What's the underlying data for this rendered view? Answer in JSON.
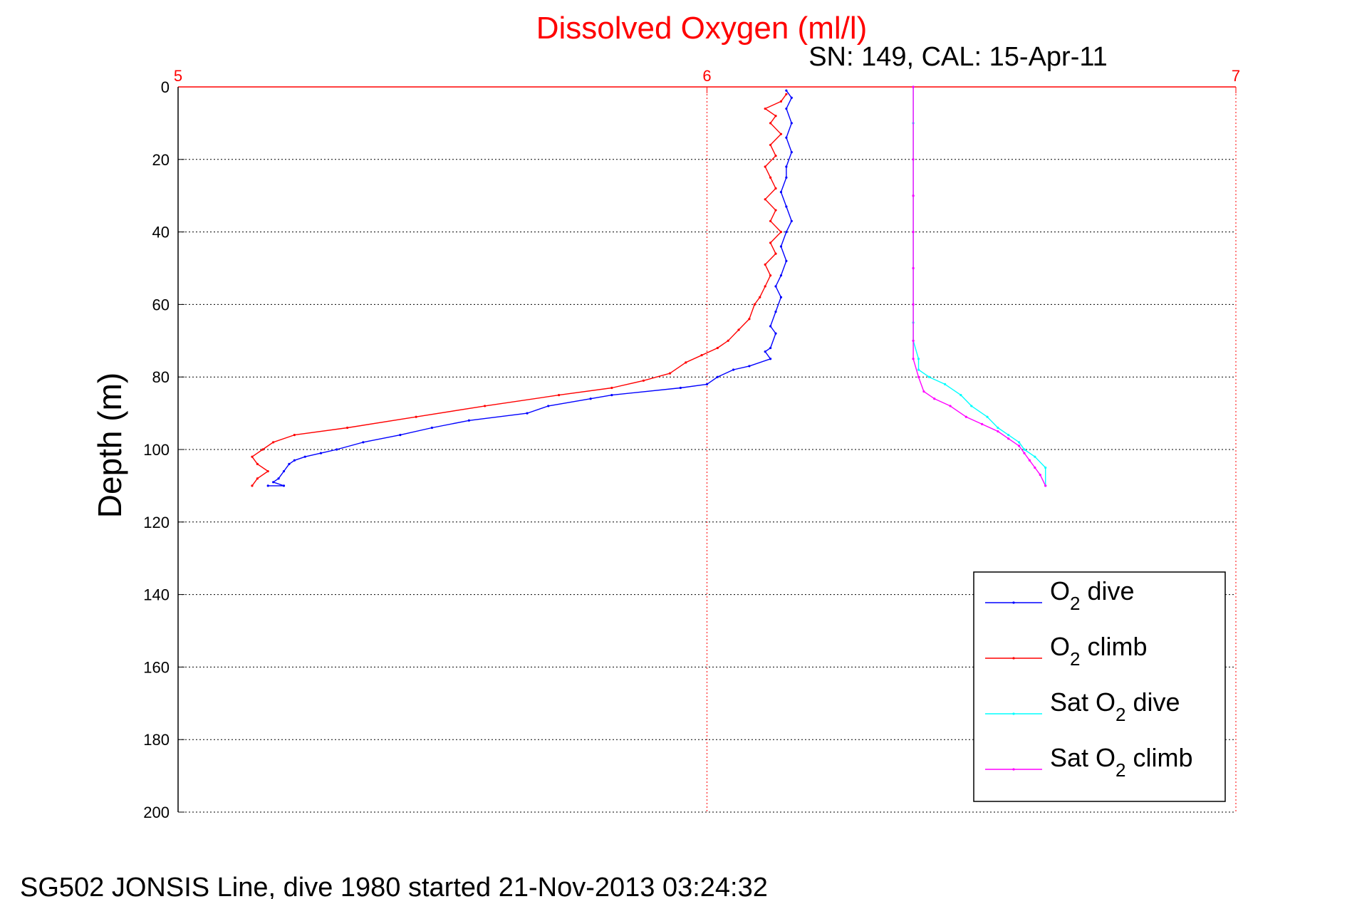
{
  "chart_data": {
    "type": "line",
    "title": "Dissolved Oxygen (ml/l)",
    "subtitle": "SN: 149, CAL: 15-Apr-11",
    "footer": "SG502 JONSIS Line, dive 1980 started 21-Nov-2013 03:24:32",
    "ylabel": "Depth (m)",
    "xlabel": "",
    "xlim": [
      5,
      7
    ],
    "ylim": [
      0,
      200
    ],
    "y_reversed": true,
    "x_axis_position": "top",
    "xticks": [
      5,
      6,
      7
    ],
    "yticks": [
      0,
      20,
      40,
      60,
      80,
      100,
      120,
      140,
      160,
      180,
      200
    ],
    "grid": true,
    "legend_position": "bottom-right",
    "colors": {
      "o2_dive": "#0000ff",
      "o2_climb": "#ff0000",
      "sat_dive": "#00ffff",
      "sat_climb": "#ff00ff",
      "x_axis": "#ff0000",
      "grid": "#000000"
    },
    "series": [
      {
        "key": "o2_dive",
        "legend": {
          "pre": "O",
          "sub": "2",
          "post": " dive"
        },
        "x": [
          6.15,
          6.16,
          6.15,
          6.16,
          6.15,
          6.16,
          6.15,
          6.15,
          6.14,
          6.15,
          6.16,
          6.15,
          6.14,
          6.15,
          6.14,
          6.13,
          6.14,
          6.13,
          6.12,
          6.13,
          6.12,
          6.11,
          6.12,
          6.08,
          6.05,
          6.02,
          6.0,
          5.95,
          5.82,
          5.78,
          5.7,
          5.66,
          5.55,
          5.48,
          5.42,
          5.35,
          5.3,
          5.27,
          5.24,
          5.22,
          5.21,
          5.2,
          5.19,
          5.18,
          5.2,
          5.17
        ],
        "y": [
          1,
          3,
          6,
          10,
          14,
          18,
          22,
          25,
          29,
          33,
          37,
          40,
          44,
          48,
          52,
          55,
          58,
          62,
          66,
          68,
          72,
          73,
          75,
          77,
          78,
          80,
          82,
          83,
          85,
          86,
          88,
          90,
          92,
          94,
          96,
          98,
          100,
          101,
          102,
          103,
          104,
          106,
          108,
          109,
          110,
          110
        ]
      },
      {
        "key": "o2_climb",
        "legend": {
          "pre": "O",
          "sub": "2",
          "post": " climb"
        },
        "x": [
          5.14,
          5.15,
          5.17,
          5.15,
          5.14,
          5.16,
          5.18,
          5.22,
          5.32,
          5.45,
          5.58,
          5.72,
          5.82,
          5.88,
          5.93,
          5.96,
          5.99,
          6.02,
          6.04,
          6.06,
          6.08,
          6.09,
          6.1,
          6.11,
          6.12,
          6.11,
          6.13,
          6.12,
          6.14,
          6.12,
          6.13,
          6.11,
          6.13,
          6.12,
          6.11,
          6.13,
          6.12,
          6.14,
          6.12,
          6.13,
          6.11,
          6.14,
          6.15
        ],
        "y": [
          110,
          108,
          106,
          104,
          102,
          100,
          98,
          96,
          94,
          91,
          88,
          85,
          83,
          81,
          79,
          76,
          74,
          72,
          70,
          67,
          64,
          60,
          58,
          55,
          52,
          49,
          46,
          43,
          40,
          37,
          34,
          31,
          28,
          25,
          22,
          19,
          16,
          13,
          10,
          8,
          6,
          4,
          2
        ]
      },
      {
        "key": "sat_dive",
        "legend": {
          "pre": "Sat O",
          "sub": "2",
          "post": " dive"
        },
        "x": [
          6.39,
          6.39,
          6.39,
          6.39,
          6.39,
          6.39,
          6.39,
          6.39,
          6.39,
          6.4,
          6.4,
          6.42,
          6.45,
          6.48,
          6.5,
          6.53,
          6.55,
          6.57,
          6.59,
          6.6,
          6.62,
          6.64,
          6.64
        ],
        "y": [
          0,
          10,
          20,
          30,
          40,
          50,
          60,
          65,
          70,
          75,
          78,
          80,
          82,
          85,
          88,
          91,
          94,
          96,
          98,
          100,
          102,
          105,
          110
        ]
      },
      {
        "key": "sat_climb",
        "legend": {
          "pre": "Sat O",
          "sub": "2",
          "post": " climb"
        },
        "x": [
          6.64,
          6.63,
          6.62,
          6.61,
          6.6,
          6.59,
          6.57,
          6.55,
          6.52,
          6.49,
          6.46,
          6.43,
          6.41,
          6.4,
          6.39,
          6.39,
          6.39,
          6.39,
          6.39,
          6.39,
          6.39,
          6.39
        ],
        "y": [
          110,
          107,
          105,
          103,
          101,
          99,
          97,
          95,
          93,
          91,
          88,
          86,
          84,
          80,
          75,
          70,
          60,
          50,
          40,
          30,
          20,
          0
        ]
      }
    ]
  }
}
